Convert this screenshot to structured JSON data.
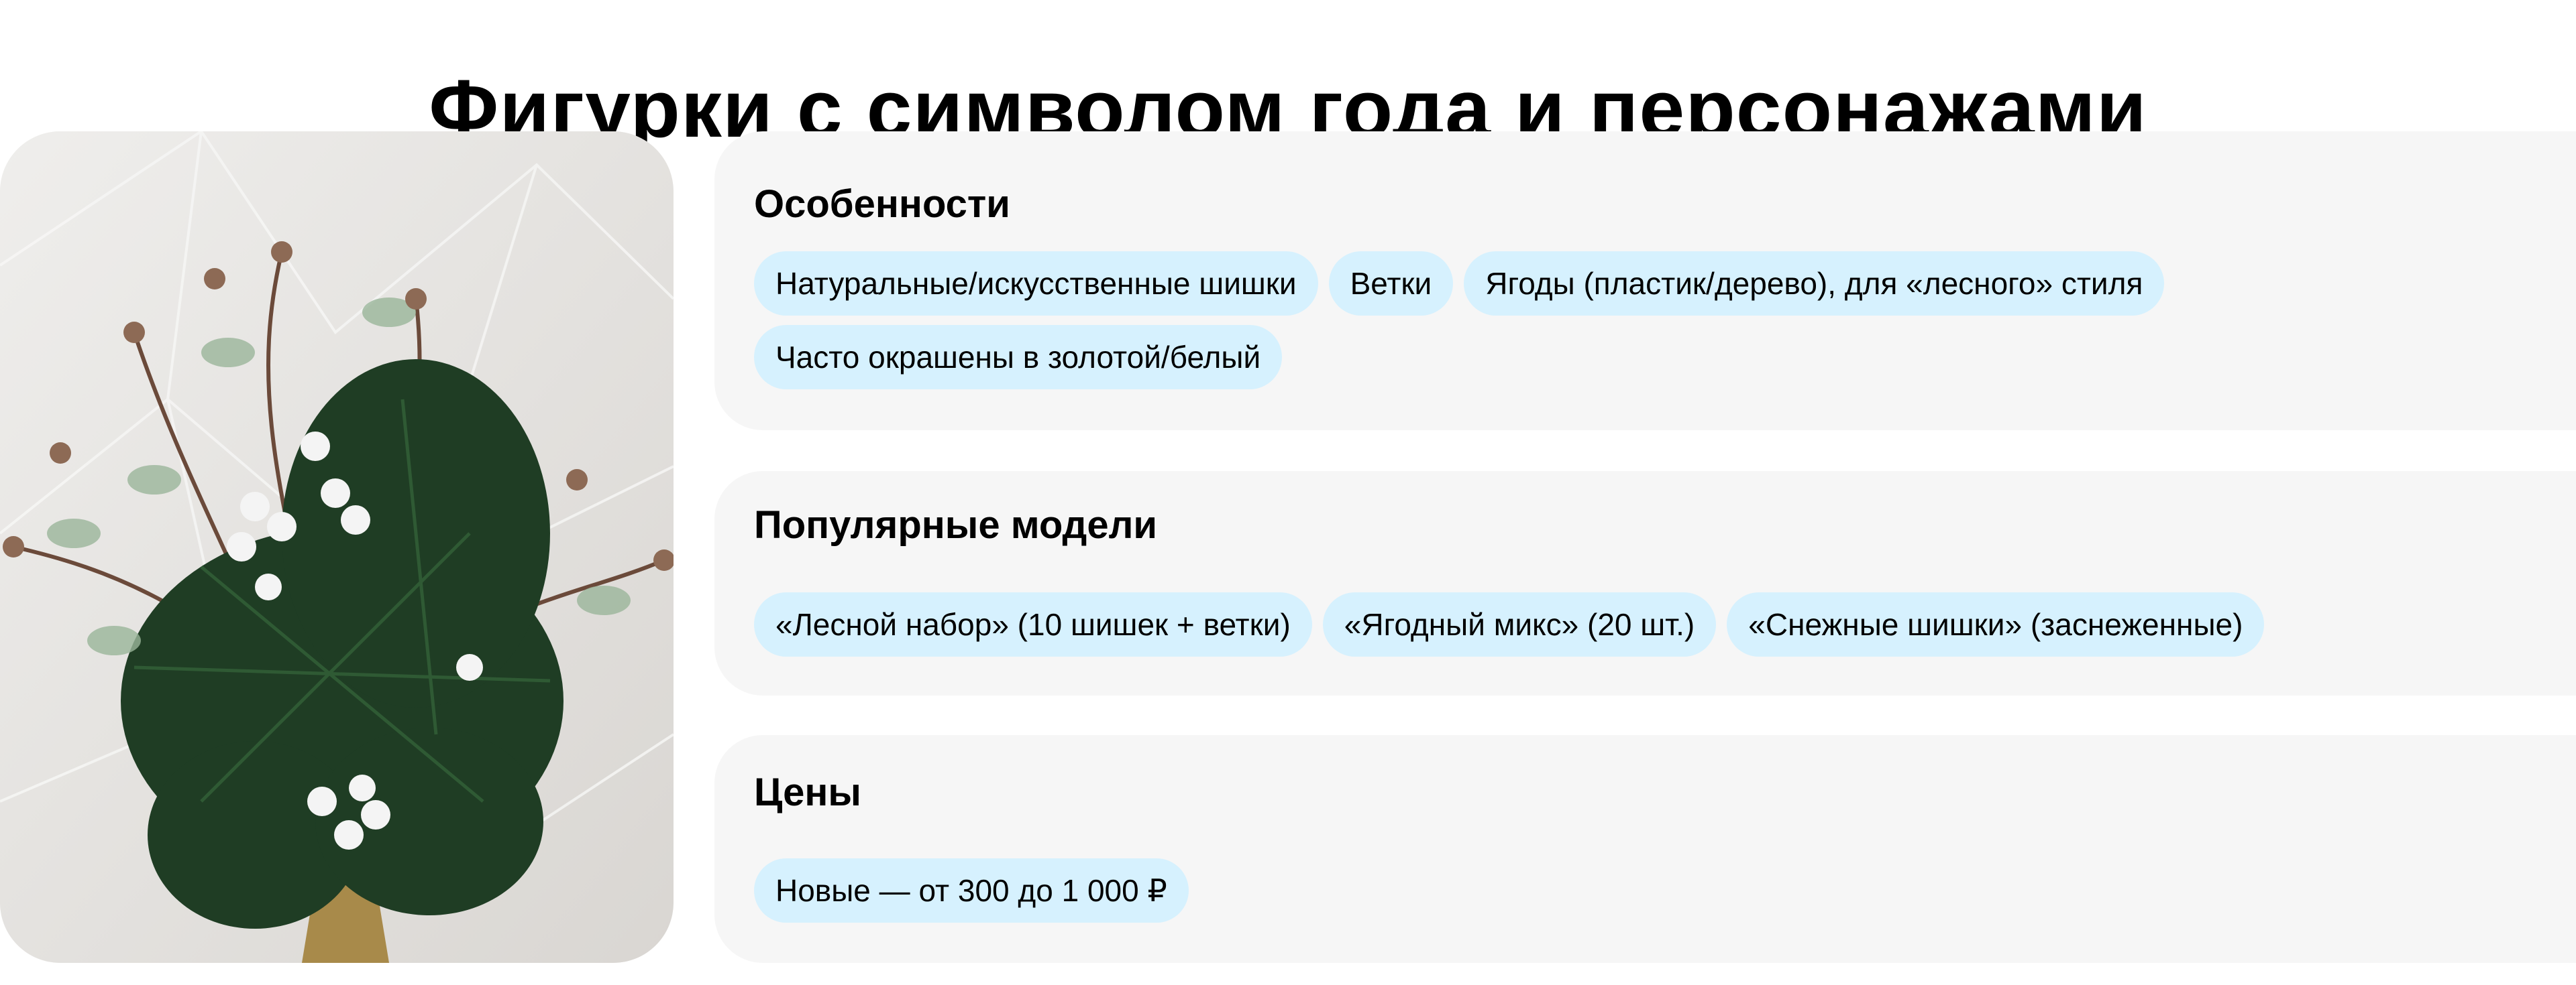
{
  "title": "Фигурки с символом года и персонажами",
  "colors": {
    "card_bg": "#f6f6f6",
    "chip_bg": "#d6f1fe",
    "text": "#000000"
  },
  "image": {
    "alt": "Новогодняя композиция из еловых веток, шишек и белых ягод в вазе"
  },
  "sections": [
    {
      "heading": "Особенности",
      "chips": [
        "Натуральные/искусственные шишки",
        "Ветки",
        "Ягоды (пластик/дерево), для «лесного» стиля",
        "Часто окрашены в золотой/белый"
      ]
    },
    {
      "heading": "Популярные модели",
      "chips": [
        "«Лесной набор» (10 шишек + ветки)",
        "«Ягодный микс» (20 шт.)",
        "«Снежные шишки» (заснеженные)"
      ]
    },
    {
      "heading": "Цены",
      "chips": [
        "Новые — от 300 до 1 000 ₽"
      ]
    }
  ]
}
